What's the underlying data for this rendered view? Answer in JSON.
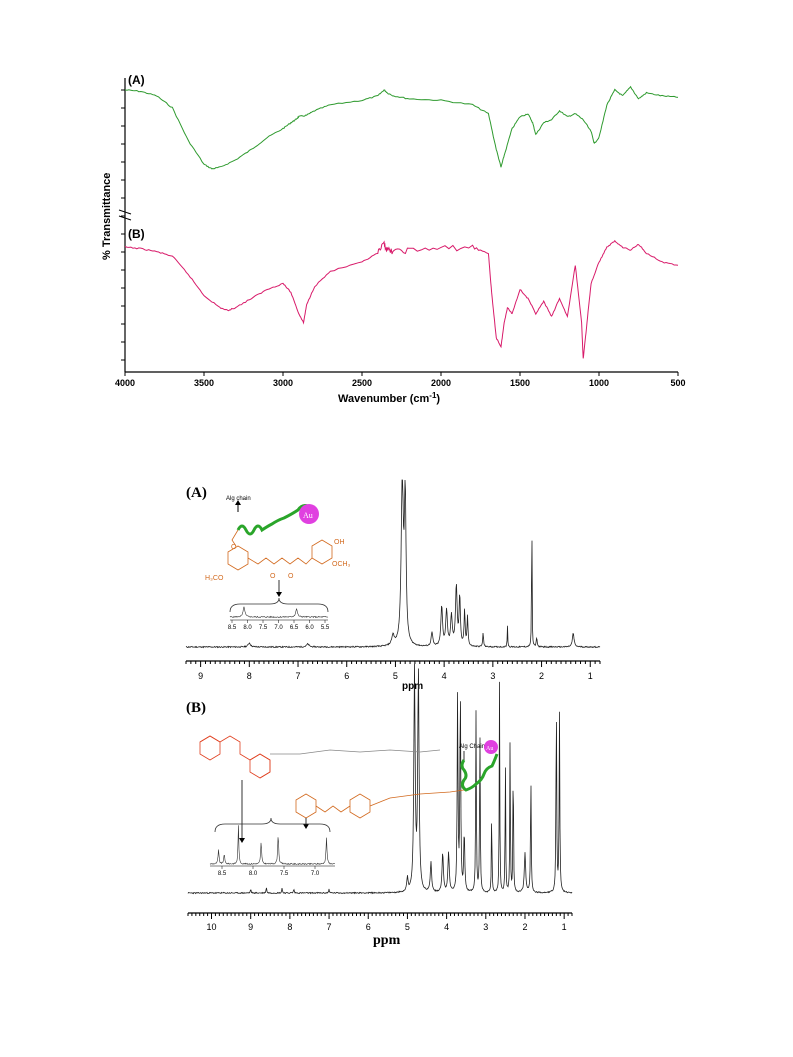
{
  "colors": {
    "ftir_a": "#2e9a2e",
    "ftir_b": "#d81b6a",
    "nmr": "#222222",
    "structure_orange": "#d2691e",
    "structure_red": "#e04020",
    "chain_green": "#2aa52a",
    "au_magenta": "#e040e0"
  },
  "ftir": {
    "ylabel": "% Transmittance",
    "xlabel": "Wavenumber (cm",
    "xlabel_sup": "-1",
    "xlabel_end": ")",
    "panel_a": "(A)",
    "panel_b": "(B)",
    "xticks": [
      "4000",
      "3500",
      "3000",
      "2500",
      "2000",
      "1500",
      "1000",
      "500"
    ]
  },
  "nmr_a": {
    "panel": "(A)",
    "xlabel": "ppm",
    "xticks": [
      "9",
      "8",
      "7",
      "6",
      "5",
      "4",
      "3",
      "2",
      "1"
    ],
    "alg_chain": "Alg chain",
    "au": "Au",
    "oh": "OH",
    "h3co": "H₃CO",
    "och3": "OCH₃",
    "o1": "O",
    "o2": "O",
    "inset_ticks": [
      "8.5",
      "8.0",
      "7.5",
      "7.0",
      "6.5",
      "6.0",
      "5.5"
    ]
  },
  "nmr_b": {
    "panel": "(B)",
    "xlabel": "ppm",
    "xticks": [
      "10",
      "9",
      "8",
      "7",
      "6",
      "5",
      "4",
      "3",
      "2",
      "1"
    ],
    "alg_chain": "Alg Chain",
    "au": "Au",
    "inset_ticks": [
      "8.5",
      "8.0",
      "7.5",
      "7.0"
    ]
  },
  "chart_data": [
    {
      "type": "line",
      "ylabel": "% Transmittance",
      "xlabel": "Wavenumber (cm-1)",
      "xlim": [
        4000,
        500
      ],
      "series": [
        {
          "name": "(A)",
          "x": [
            4000,
            3900,
            3800,
            3700,
            3600,
            3500,
            3450,
            3400,
            3300,
            3200,
            3100,
            3000,
            2950,
            2920,
            2900,
            2850,
            2800,
            2700,
            2500,
            2400,
            2360,
            2340,
            2300,
            2200,
            2000,
            1800,
            1700,
            1650,
            1620,
            1600,
            1550,
            1500,
            1450,
            1420,
            1400,
            1350,
            1300,
            1250,
            1200,
            1150,
            1100,
            1050,
            1030,
            1000,
            950,
            900,
            850,
            800,
            750,
            700,
            600,
            500
          ],
          "y": [
            92,
            91,
            88,
            80,
            58,
            42,
            39,
            40,
            45,
            52,
            60,
            66,
            70,
            72,
            74,
            75,
            78,
            82,
            85,
            88,
            92,
            90,
            88,
            86,
            85,
            82,
            76,
            52,
            40,
            48,
            66,
            74,
            76,
            70,
            62,
            70,
            72,
            78,
            74,
            76,
            72,
            64,
            56,
            60,
            82,
            92,
            88,
            94,
            86,
            90,
            88,
            87
          ]
        },
        {
          "name": "(B)",
          "x": [
            4000,
            3900,
            3800,
            3700,
            3600,
            3500,
            3400,
            3350,
            3300,
            3200,
            3100,
            3000,
            2950,
            2900,
            2870,
            2850,
            2800,
            2700,
            2500,
            2400,
            2360,
            2340,
            2300,
            2200,
            2000,
            1800,
            1700,
            1680,
            1650,
            1620,
            1600,
            1580,
            1550,
            1500,
            1450,
            1400,
            1350,
            1300,
            1250,
            1200,
            1150,
            1110,
            1100,
            1080,
            1050,
            1000,
            950,
            900,
            850,
            800,
            750,
            700,
            600,
            500
          ],
          "y": [
            90,
            89,
            87,
            84,
            72,
            58,
            50,
            48,
            50,
            56,
            62,
            66,
            60,
            46,
            40,
            52,
            64,
            74,
            80,
            86,
            92,
            88,
            87,
            88,
            89,
            90,
            86,
            60,
            30,
            24,
            40,
            50,
            46,
            62,
            56,
            46,
            54,
            44,
            56,
            44,
            78,
            40,
            16,
            36,
            66,
            80,
            90,
            94,
            90,
            88,
            92,
            86,
            80,
            78
          ]
        }
      ]
    },
    {
      "type": "line",
      "xlabel": "ppm",
      "xlim": [
        9.3,
        0.8
      ],
      "peaks_ppm": [
        8.0,
        6.8,
        5.05,
        4.85,
        4.8,
        4.25,
        4.05,
        3.95,
        3.85,
        3.75,
        3.65,
        3.55,
        3.2,
        2.7,
        2.2,
        2.1,
        1.35
      ]
    },
    {
      "type": "line",
      "xlabel": "ppm",
      "xlim": [
        10.6,
        0.8
      ],
      "peaks_ppm": [
        9.0,
        8.6,
        8.2,
        7.9,
        7.0,
        4.8,
        4.7,
        4.1,
        3.9,
        3.7,
        3.6,
        3.2,
        3.1,
        2.8,
        2.6,
        2.4,
        2.3,
        1.9,
        1.2,
        1.15
      ]
    }
  ]
}
